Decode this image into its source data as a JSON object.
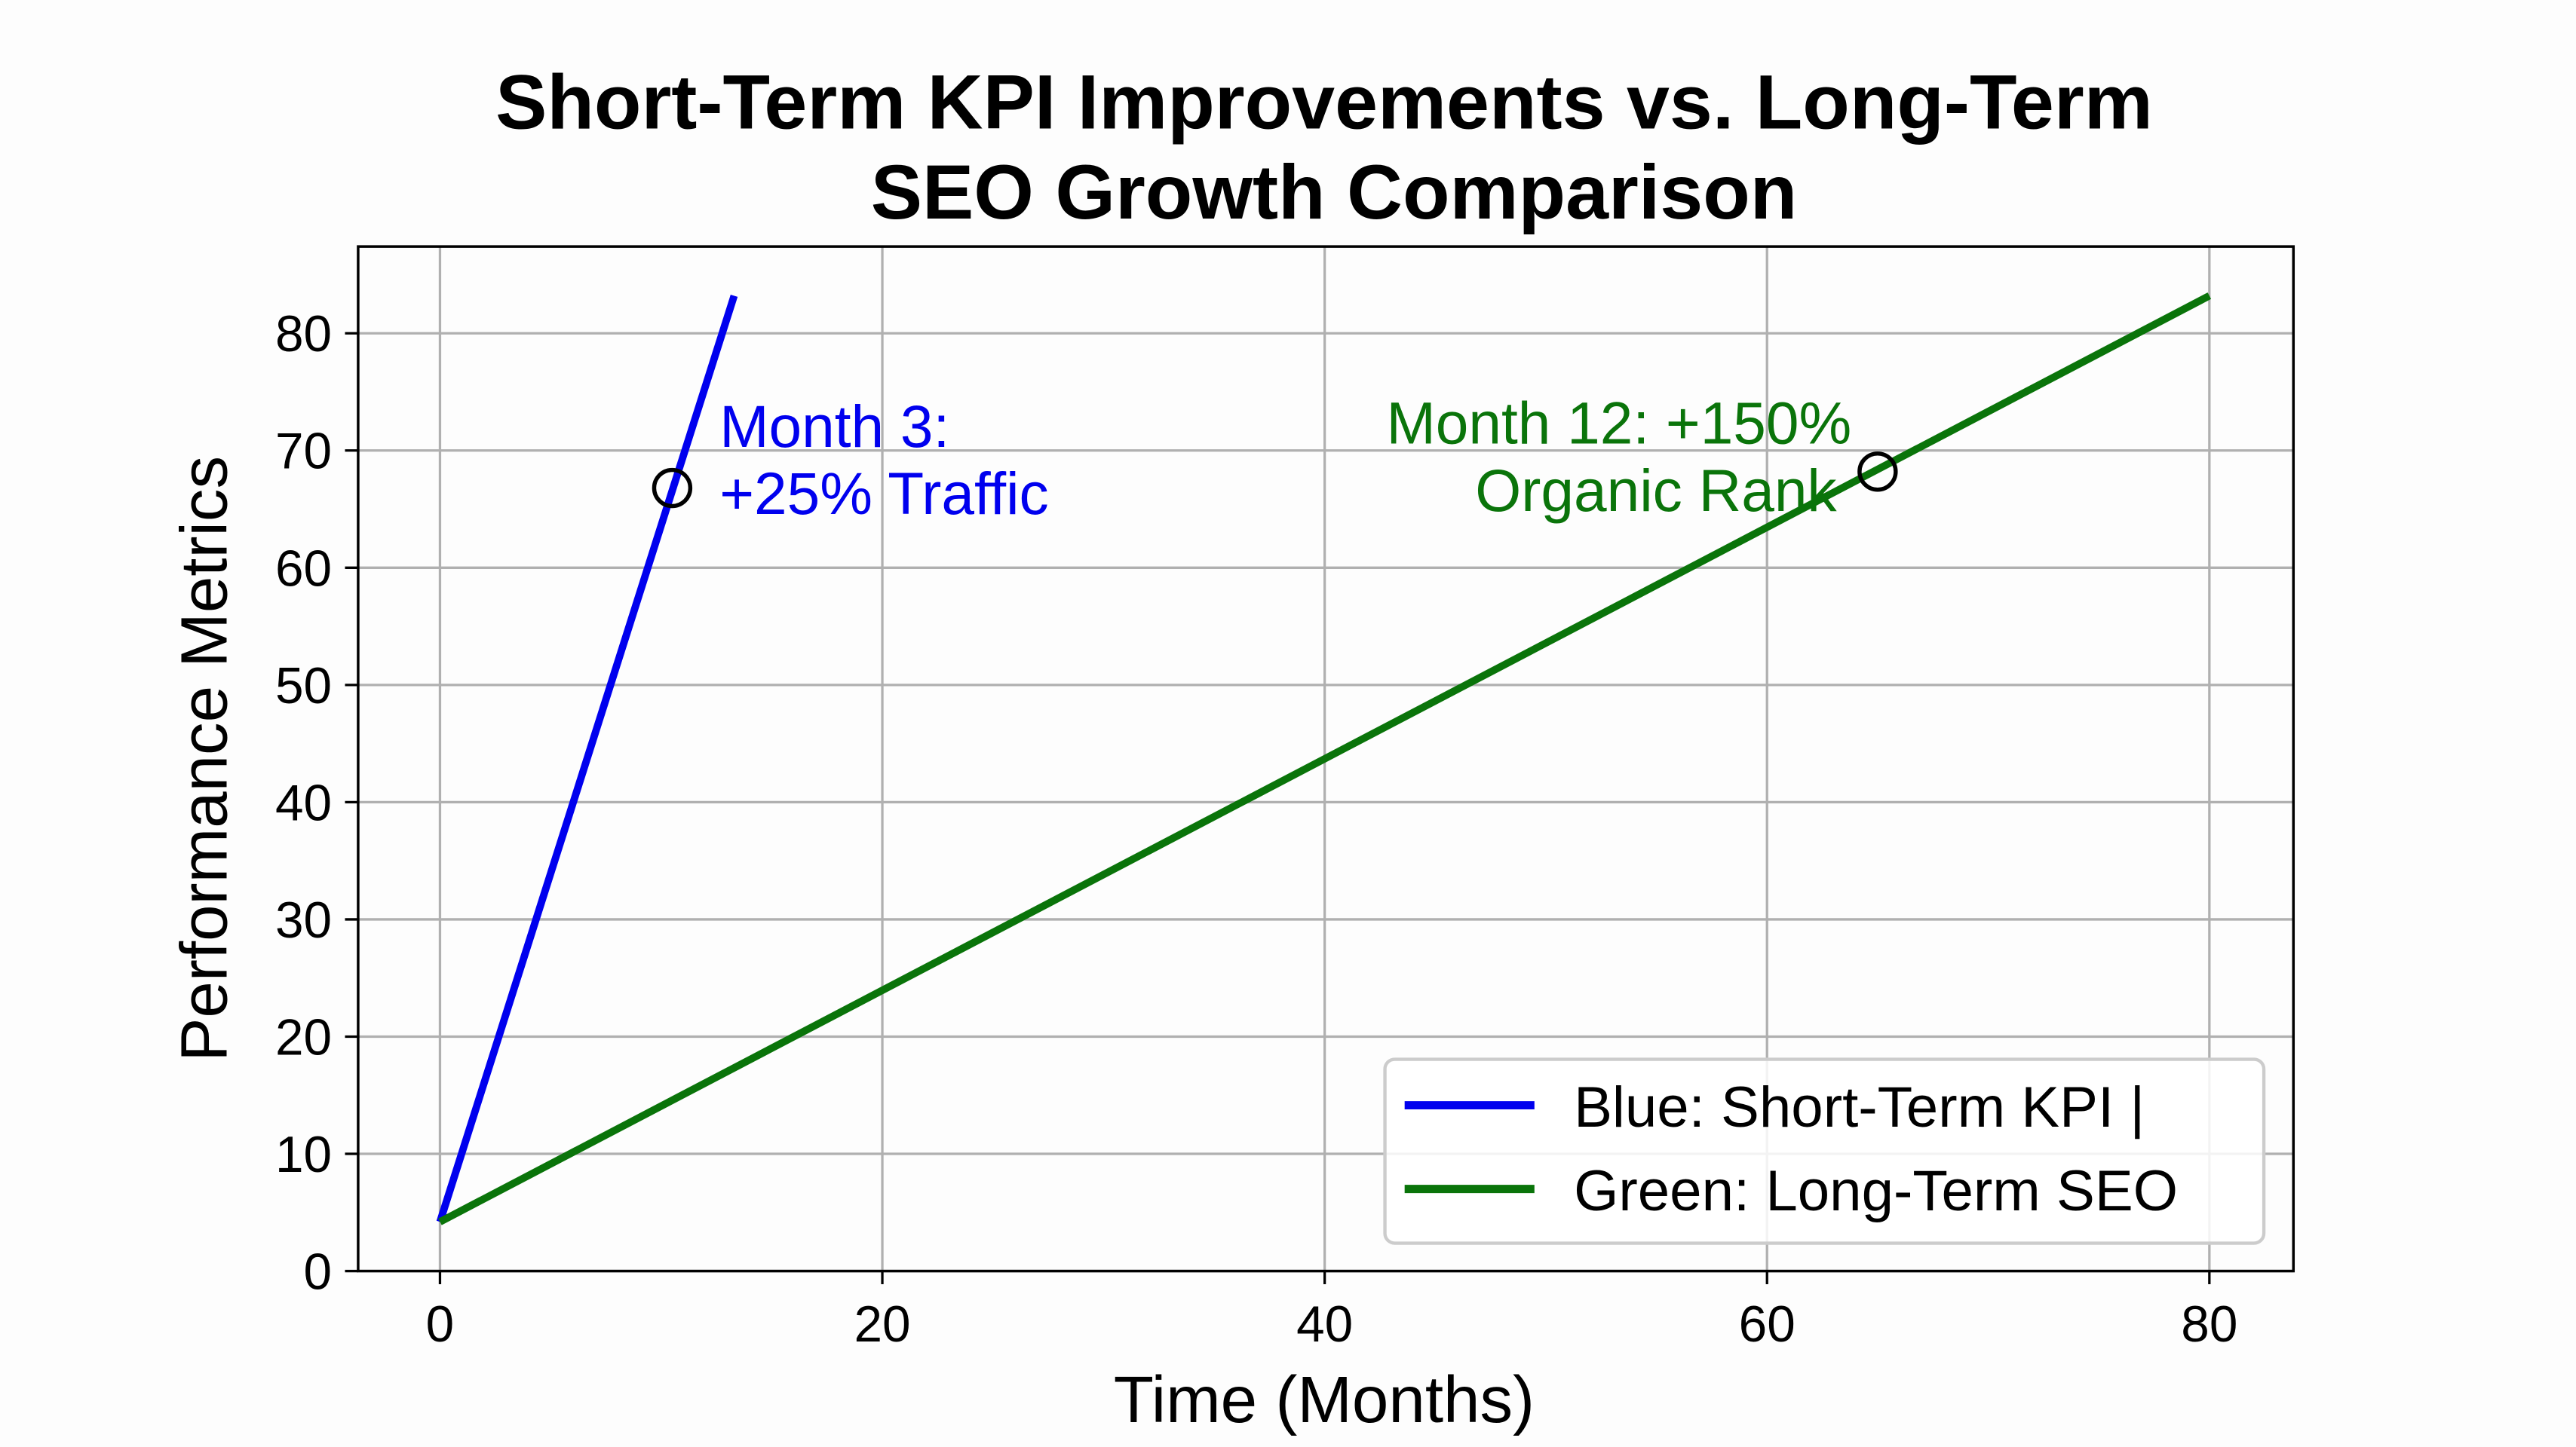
{
  "chart_data": {
    "type": "line",
    "title": [
      "Short-Term KPI Improvements vs. Long-Term",
      "SEO Growth Comparison"
    ],
    "xlabel": "Time (Months)",
    "ylabel": "Performance Metrics",
    "xlim": [
      -3.7,
      83.8
    ],
    "ylim": [
      0,
      87.4
    ],
    "xticks": [
      0,
      20,
      40,
      60,
      80
    ],
    "yticks": [
      0,
      10,
      20,
      30,
      40,
      50,
      60,
      70,
      80
    ],
    "grid": true,
    "legend_placement": "lower-right",
    "series": [
      {
        "name": "Blue: Short-Term KPI |",
        "color": "#0000ee",
        "x": [
          0,
          13.3
        ],
        "y": [
          4.2,
          83.2
        ]
      },
      {
        "name": "Green: Long-Term SEO",
        "color": "#0a740a",
        "x": [
          0,
          80
        ],
        "y": [
          4.2,
          83.2
        ]
      }
    ],
    "annotations": [
      {
        "lines": [
          "Month 3:",
          "+25% Traffic"
        ],
        "color": "#0000ee",
        "marker": {
          "x": 10.5,
          "y": 66.8
        }
      },
      {
        "lines": [
          "Month 12: +150%",
          "Organic Rank"
        ],
        "color": "#0a740a",
        "marker": {
          "x": 65,
          "y": 68.2
        }
      }
    ]
  }
}
